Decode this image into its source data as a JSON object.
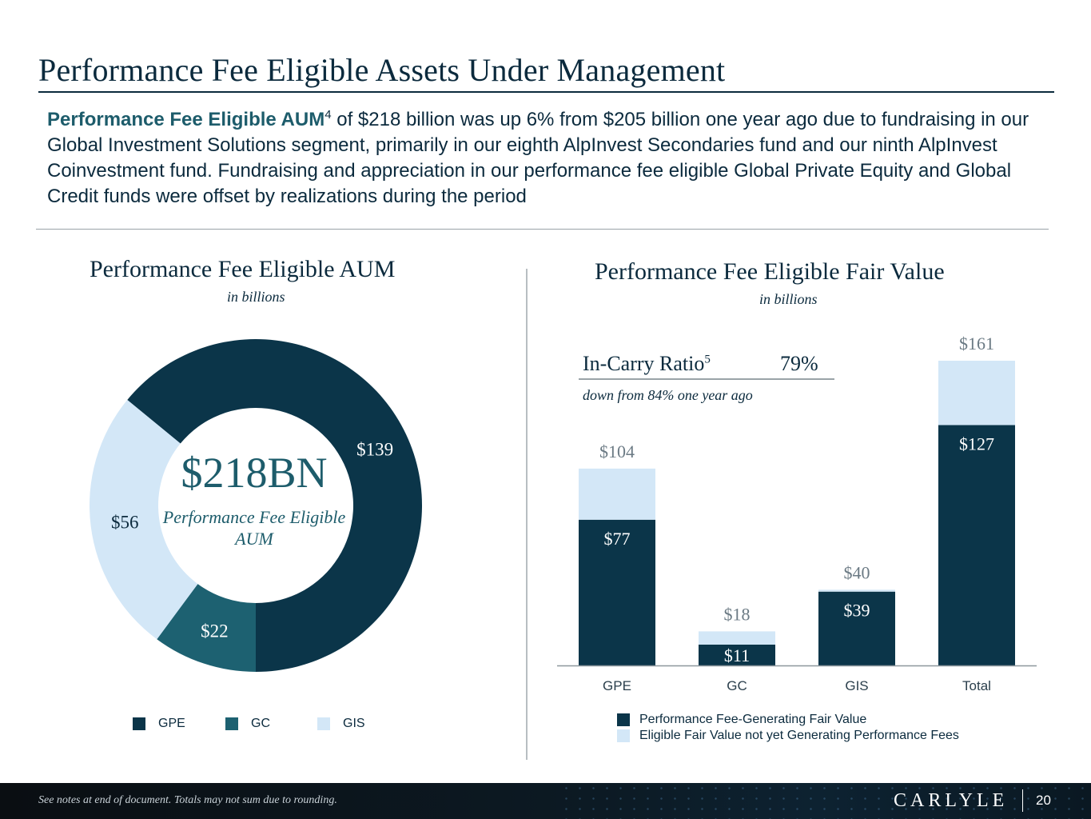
{
  "page": {
    "title": "Performance Fee Eligible Assets Under Management",
    "intro": {
      "lead": "Performance Fee Eligible AUM",
      "lead_sup": "4",
      "body": " of $218 billion was up 6% from $205 billion one year ago due to fundraising in our Global Investment Solutions segment, primarily in our eighth AlpInvest Secondaries fund and our ninth AlpInvest Coinvestment fund. Fundraising and appreciation in our performance fee eligible Global Private Equity and Global Credit funds were offset by realizations during the period"
    },
    "footer_note": "See notes at end of document. Totals may not sum due to rounding.",
    "logo": "CARLYLE",
    "page_number": "20"
  },
  "colors": {
    "dark": "#0b3549",
    "teal": "#1d6171",
    "light": "#d3e7f7",
    "text": "#0b2a3d"
  },
  "left_panel": {
    "title": "Performance Fee Eligible AUM",
    "subtitle": "in billions",
    "center_value": "$218BN",
    "center_caption": "Performance Fee Eligible AUM"
  },
  "right_panel": {
    "title": "Performance Fee Eligible Fair Value",
    "subtitle": "in billions",
    "in_carry_label": "In-Carry Ratio",
    "in_carry_sup": "5",
    "in_carry_value": "79%",
    "in_carry_note": "down from 84% one year ago"
  },
  "chart_data": [
    {
      "type": "pie",
      "title": "Performance Fee Eligible AUM",
      "subtitle": "in billions",
      "categories": [
        "GPE",
        "GC",
        "GIS"
      ],
      "values": [
        139,
        22,
        56
      ],
      "labels": [
        "$139",
        "$22",
        "$56"
      ],
      "colors": [
        "#0b3549",
        "#1d6171",
        "#d3e7f7"
      ],
      "legend": [
        "GPE",
        "GC",
        "GIS"
      ],
      "legend_position": "bottom"
    },
    {
      "type": "bar",
      "stacked": true,
      "title": "Performance Fee Eligible Fair Value",
      "subtitle": "in billions",
      "categories": [
        "GPE",
        "GC",
        "GIS",
        "Total"
      ],
      "series": [
        {
          "name": "Performance Fee-Generating Fair Value",
          "values": [
            77,
            11,
            39,
            127
          ],
          "labels": [
            "$77",
            "$11",
            "$39",
            "$127"
          ],
          "color": "#0b3549"
        },
        {
          "name": "Eligible Fair Value not yet Generating Performance Fees",
          "values": [
            27,
            7,
            1,
            34
          ],
          "color": "#d3e7f7"
        }
      ],
      "totals": [
        104,
        18,
        40,
        161
      ],
      "total_labels": [
        "$104",
        "$18",
        "$40",
        "$161"
      ],
      "ylim": [
        0,
        161
      ],
      "legend_position": "bottom"
    }
  ]
}
